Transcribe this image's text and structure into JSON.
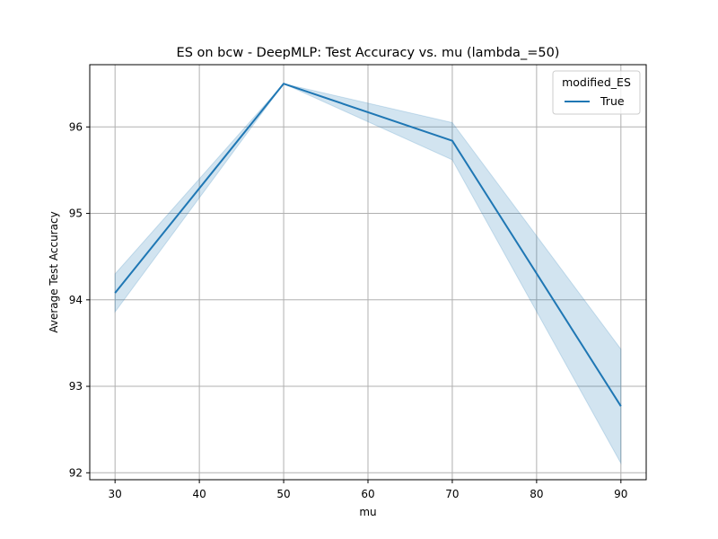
{
  "chart_data": {
    "type": "line",
    "title": "ES on bcw - DeepMLP: Test Accuracy vs. mu (lambda_=50)",
    "xlabel": "mu",
    "ylabel": "Average Test Accuracy",
    "xlim": [
      27,
      93
    ],
    "ylim": [
      91.92,
      96.72
    ],
    "xticks": [
      30,
      40,
      50,
      60,
      70,
      80,
      90
    ],
    "yticks": [
      92,
      93,
      94,
      95,
      96
    ],
    "grid": true,
    "legend": {
      "title": "modified_ES",
      "placement": "top-right",
      "entries": [
        "True"
      ]
    },
    "series": [
      {
        "name": "True",
        "color": "#1f77b4",
        "x": [
          30,
          50,
          70,
          90
        ],
        "y": [
          94.08,
          96.5,
          95.84,
          92.77
        ],
        "ci_lower": [
          93.86,
          96.5,
          95.62,
          92.11
        ],
        "ci_upper": [
          94.3,
          96.5,
          96.05,
          93.43
        ]
      }
    ]
  }
}
